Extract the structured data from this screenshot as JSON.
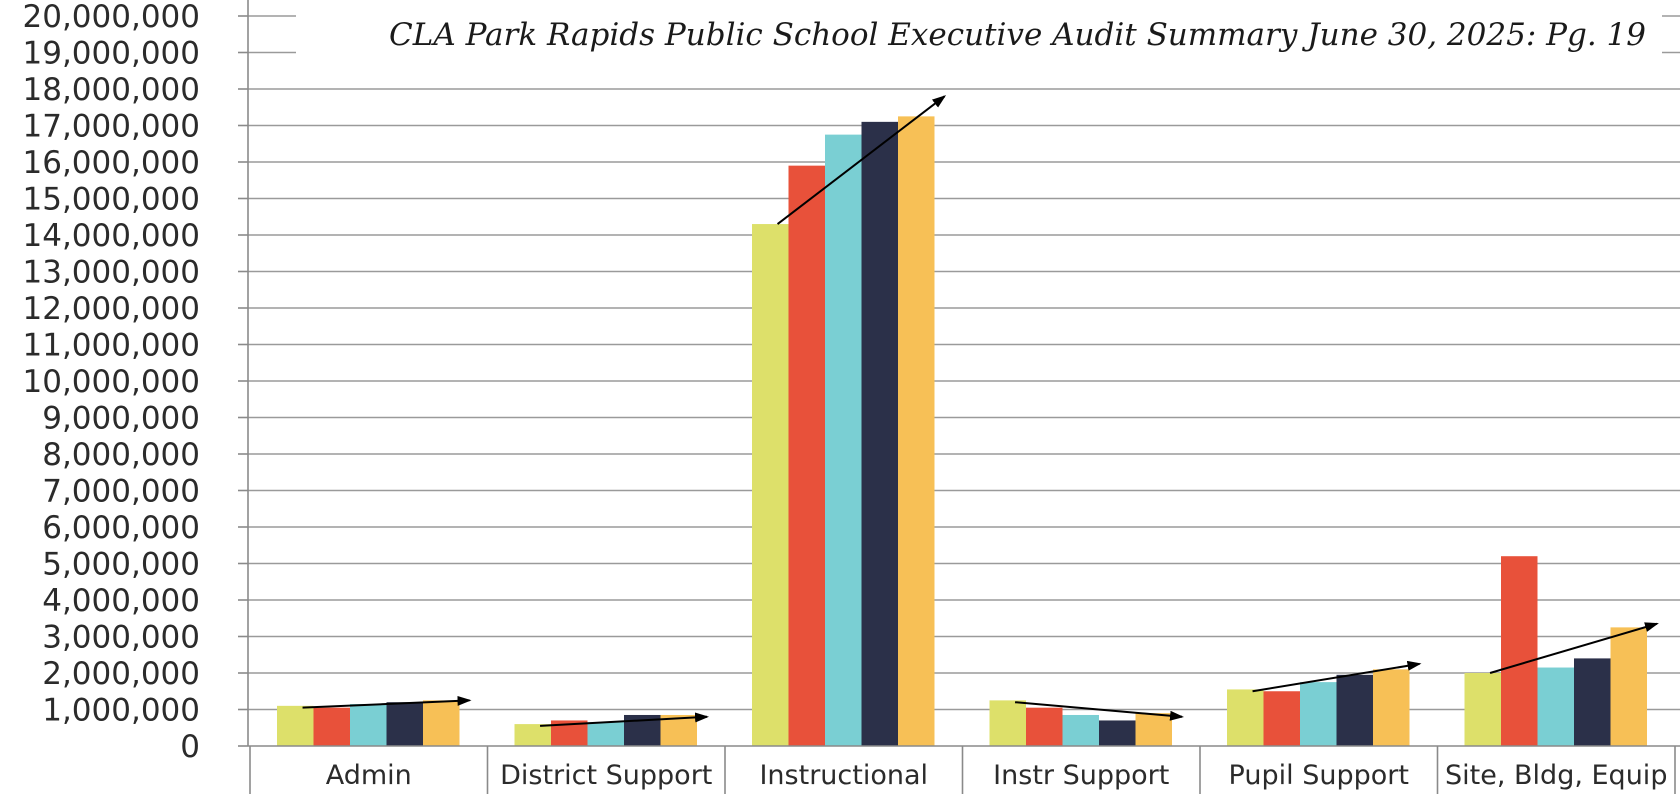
{
  "chart_data": {
    "type": "bar",
    "title": "CLA Park Rapids Public School Executive Audit Summary June 30, 2025: Pg. 19",
    "categories": [
      "Admin",
      "District Support",
      "Instructional",
      "Instr Support",
      "Pupil Support",
      "Site, Bldg, Equip"
    ],
    "series": [
      {
        "color": "#dde06a",
        "values": [
          1100000,
          600000,
          14300000,
          1250000,
          1550000,
          2000000
        ]
      },
      {
        "color": "#e8513a",
        "values": [
          1050000,
          700000,
          15900000,
          1050000,
          1500000,
          5200000
        ]
      },
      {
        "color": "#7acfd3",
        "values": [
          1150000,
          650000,
          16750000,
          850000,
          1750000,
          2150000
        ]
      },
      {
        "color": "#2b3049",
        "values": [
          1200000,
          850000,
          17100000,
          700000,
          1950000,
          2400000
        ]
      },
      {
        "color": "#f7c056",
        "values": [
          1250000,
          850000,
          17250000,
          900000,
          2100000,
          3250000
        ]
      }
    ],
    "ylim": [
      0,
      20000000
    ],
    "ytick_step": 1000000,
    "yticks": [
      "0",
      "1,000,000",
      "2,000,000",
      "3,000,000",
      "4,000,000",
      "5,000,000",
      "6,000,000",
      "7,000,000",
      "8,000,000",
      "9,000,000",
      "10,000,000",
      "11,000,000",
      "12,000,000",
      "13,000,000",
      "14,000,000",
      "15,000,000",
      "16,000,000",
      "17,000,000",
      "18,000,000",
      "19,000,000",
      "20,000,000"
    ],
    "grid": true,
    "legend": "none",
    "trend_arrows": [
      {
        "category": "Admin",
        "from": 1050000,
        "to": 1250000
      },
      {
        "category": "District Support",
        "from": 550000,
        "to": 800000
      },
      {
        "category": "Instructional",
        "from": 14300000,
        "to": 17800000
      },
      {
        "category": "Instr Support",
        "from": 1200000,
        "to": 800000
      },
      {
        "category": "Pupil Support",
        "from": 1500000,
        "to": 2250000
      },
      {
        "category": "Site, Bldg, Equip",
        "from": 2000000,
        "to": 3350000
      }
    ]
  }
}
